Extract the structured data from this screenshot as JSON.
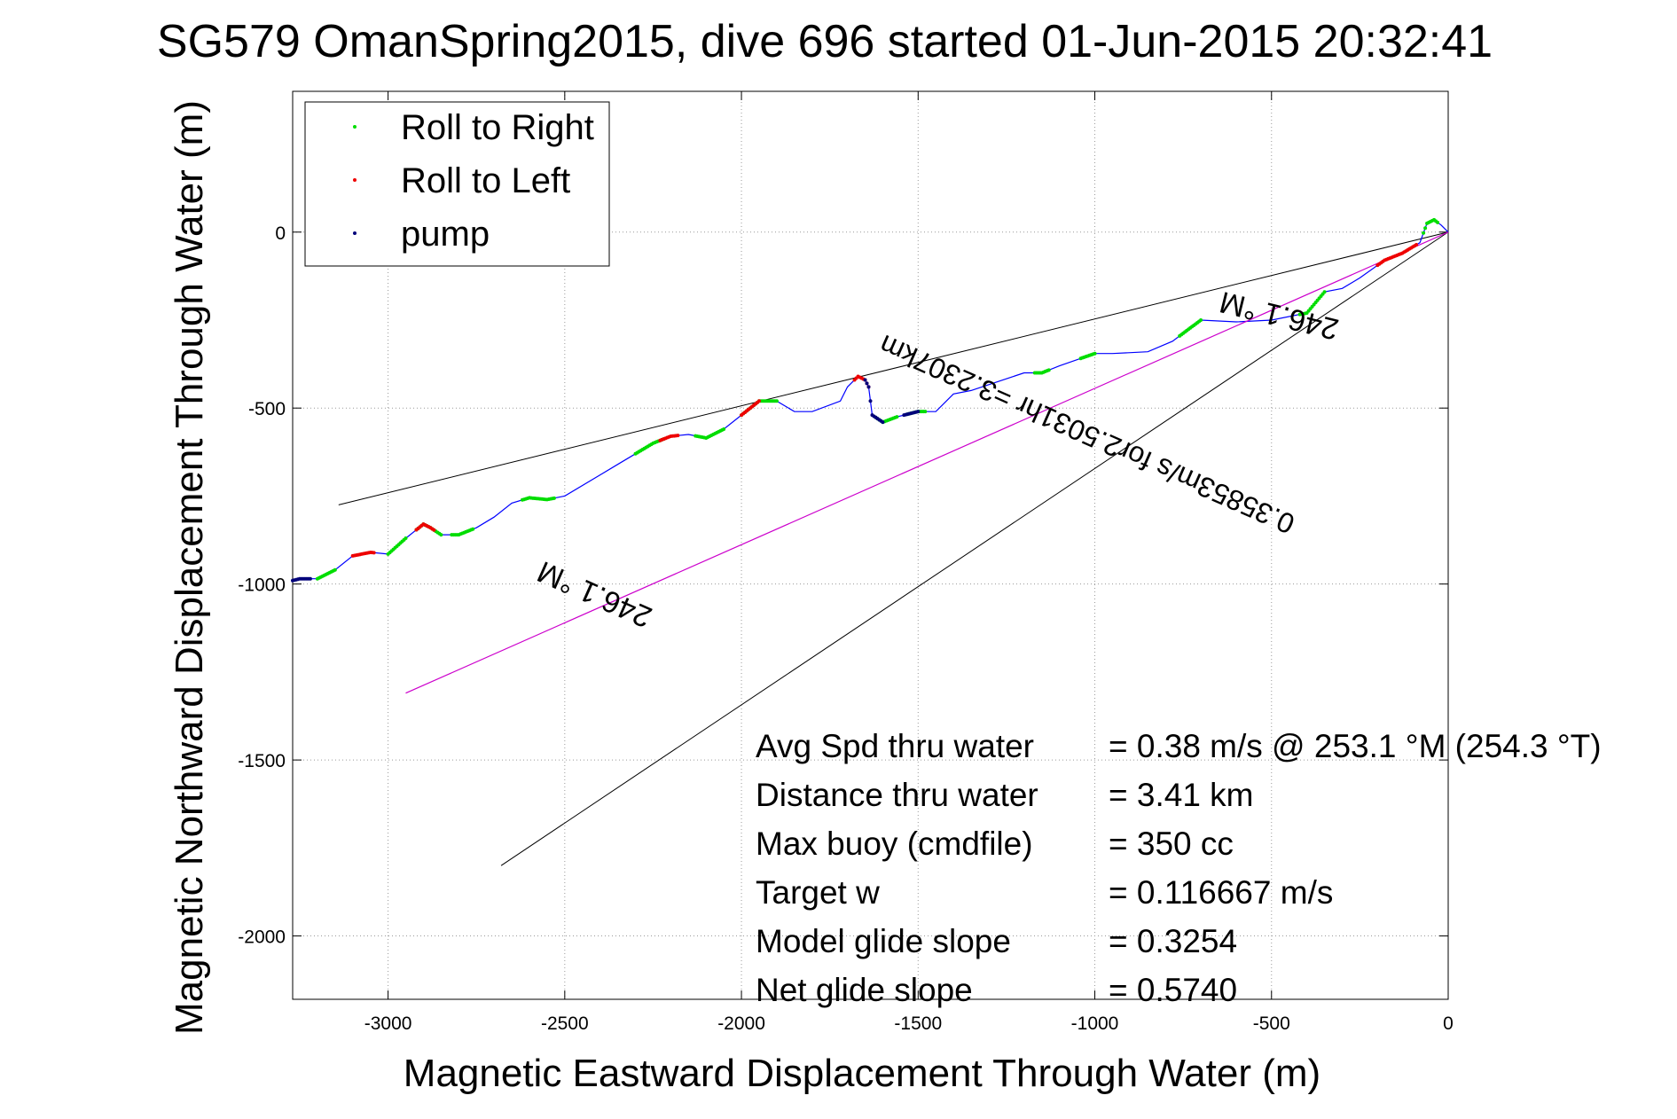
{
  "chart_data": {
    "type": "line",
    "title": "SG579 OmanSpring2015, dive 696 started 01-Jun-2015 20:32:41",
    "xlabel": "Magnetic Eastward Displacement Through Water (m)",
    "ylabel": "Magnetic Northward Displacement Through Water (m)",
    "xlim": [
      -3270,
      0
    ],
    "ylim": [
      -2180,
      400
    ],
    "grid": true,
    "legend_position": "top-left",
    "x_ticks": [
      -3000,
      -2500,
      -2000,
      -1500,
      -1000,
      -500,
      0
    ],
    "y_ticks": [
      0,
      -500,
      -1000,
      -1500,
      -2000
    ],
    "x_tick_labels": [
      "-3000",
      "-2500",
      "-2000",
      "-1500",
      "-1000",
      "-500",
      "0"
    ],
    "y_tick_labels": [
      "0",
      "-500",
      "-1000",
      "-1500",
      "-2000"
    ],
    "legend": [
      {
        "label": "Roll to Right",
        "color": "#00dd00"
      },
      {
        "label": "Roll to Left",
        "color": "#ee0000"
      },
      {
        "label": "pump",
        "color": "#00007a"
      }
    ],
    "series": [
      {
        "name": "track",
        "color": "#0000ff",
        "x": [
          0,
          -20,
          -40,
          -60,
          -80,
          -130,
          -180,
          -250,
          -300,
          -350,
          -400,
          -500,
          -600,
          -700,
          -780,
          -850,
          -950,
          -1000,
          -1100,
          -1150,
          -1200,
          -1350,
          -1400,
          -1450,
          -1500,
          -1560,
          -1600,
          -1630,
          -1640,
          -1650,
          -1670,
          -1700,
          -1720,
          -1800,
          -1850,
          -1900,
          -1950,
          -2000,
          -2050,
          -2100,
          -2150,
          -2200,
          -2250,
          -2300,
          -2350,
          -2400,
          -2500,
          -2550,
          -2600,
          -2650,
          -2700,
          -2750,
          -2800,
          -2850,
          -2880,
          -2900,
          -2950,
          -3000,
          -3050,
          -3100,
          -3150,
          -3200,
          -3250,
          -3270
        ],
        "y": [
          0,
          20,
          35,
          25,
          -30,
          -60,
          -80,
          -130,
          -160,
          -170,
          -230,
          -250,
          -255,
          -250,
          -310,
          -340,
          -345,
          -345,
          -380,
          -400,
          -400,
          -450,
          -460,
          -510,
          -510,
          -525,
          -540,
          -520,
          -440,
          -420,
          -410,
          -440,
          -480,
          -510,
          -510,
          -480,
          -480,
          -520,
          -560,
          -585,
          -575,
          -580,
          -600,
          -630,
          -660,
          -690,
          -750,
          -760,
          -755,
          -770,
          -810,
          -840,
          -860,
          -860,
          -840,
          -830,
          -870,
          -915,
          -910,
          -920,
          -960,
          -985,
          -985,
          -990
        ]
      },
      {
        "name": "rhumb",
        "color": "#cc00cc",
        "x": [
          0,
          -2950
        ],
        "y": [
          0,
          -1310
        ]
      }
    ],
    "envelope_lines": [
      {
        "x": [
          0,
          -3140
        ],
        "y": [
          0,
          -775
        ]
      },
      {
        "x": [
          0,
          -2680
        ],
        "y": [
          0,
          -1800
        ]
      }
    ],
    "roll_right_x_ranges": [
      [
        -30,
        -70
      ],
      [
        -350,
        -420
      ],
      [
        -700,
        -760
      ],
      [
        -1000,
        -1040
      ],
      [
        -1130,
        -1170
      ],
      [
        -1480,
        -1530
      ],
      [
        -1560,
        -1620
      ],
      [
        -1900,
        -2000
      ],
      [
        -2050,
        -2130
      ],
      [
        -2220,
        -2300
      ],
      [
        -2530,
        -2620
      ],
      [
        -2760,
        -2820
      ],
      [
        -2850,
        -2920
      ],
      [
        -2950,
        -3000
      ],
      [
        -3150,
        -3200
      ]
    ],
    "roll_left_x_ranges": [
      [
        -90,
        -200
      ],
      [
        -1640,
        -1680
      ],
      [
        -1950,
        -2000
      ],
      [
        -2180,
        -2230
      ],
      [
        -2870,
        -2920
      ],
      [
        -3040,
        -3100
      ]
    ],
    "pump_x_ranges": [
      [
        -1600,
        -1650
      ],
      [
        -1500,
        -1540
      ],
      [
        -3220,
        -3270
      ]
    ],
    "annotations": {
      "heading_1": "246.1 °M",
      "heading_2": "246.1 °M",
      "speed_line": "0.35853m/s for2.5031hr =3.2307km"
    },
    "stats": [
      {
        "label": "Avg Spd thru water",
        "value": "=  0.38 m/s @ 253.1 °M (254.3 °T)"
      },
      {
        "label": "Distance thru water",
        "value": "=  3.41 km"
      },
      {
        "label": "Max buoy (cmdfile)",
        "value": "= 350 cc"
      },
      {
        "label": "Target w",
        "value": "= 0.116667 m/s"
      },
      {
        "label": "Model glide slope",
        "value": "= 0.3254"
      },
      {
        "label": "Net glide slope",
        "value": "= 0.5740"
      }
    ]
  }
}
